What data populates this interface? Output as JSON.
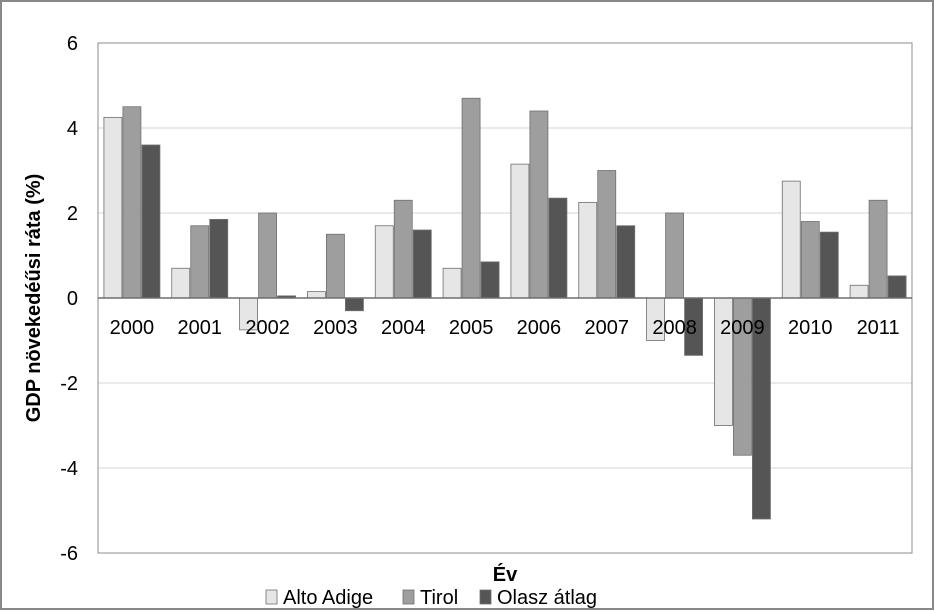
{
  "chart_data": {
    "type": "bar",
    "title": "",
    "xlabel": "Év",
    "ylabel": "GDP növekedéűsi ráta (%)",
    "categories": [
      "2000",
      "2001",
      "2002",
      "2003",
      "2004",
      "2005",
      "2006",
      "2007",
      "2008",
      "2009",
      "2010",
      "2011"
    ],
    "series": [
      {
        "name": "Alto Adige",
        "color": "#e6e6e6",
        "values": [
          4.25,
          0.7,
          -0.75,
          0.15,
          1.7,
          0.7,
          3.15,
          2.25,
          -1.0,
          -3.0,
          2.75,
          0.3
        ]
      },
      {
        "name": "Tirol",
        "color": "#9e9e9e",
        "values": [
          4.5,
          1.7,
          2.0,
          1.5,
          2.3,
          4.7,
          4.4,
          3.0,
          2.0,
          -3.7,
          1.8,
          2.3
        ]
      },
      {
        "name": "Olasz átlag",
        "color": "#555555",
        "values": [
          3.6,
          1.85,
          0.05,
          -0.3,
          1.6,
          0.85,
          2.35,
          1.7,
          -1.35,
          -5.2,
          1.55,
          0.52
        ]
      }
    ],
    "ylim": [
      -6,
      6
    ],
    "yticks": [
      -6,
      -4,
      -2,
      0,
      2,
      4,
      6
    ],
    "grid": true,
    "legend": "bottom"
  }
}
